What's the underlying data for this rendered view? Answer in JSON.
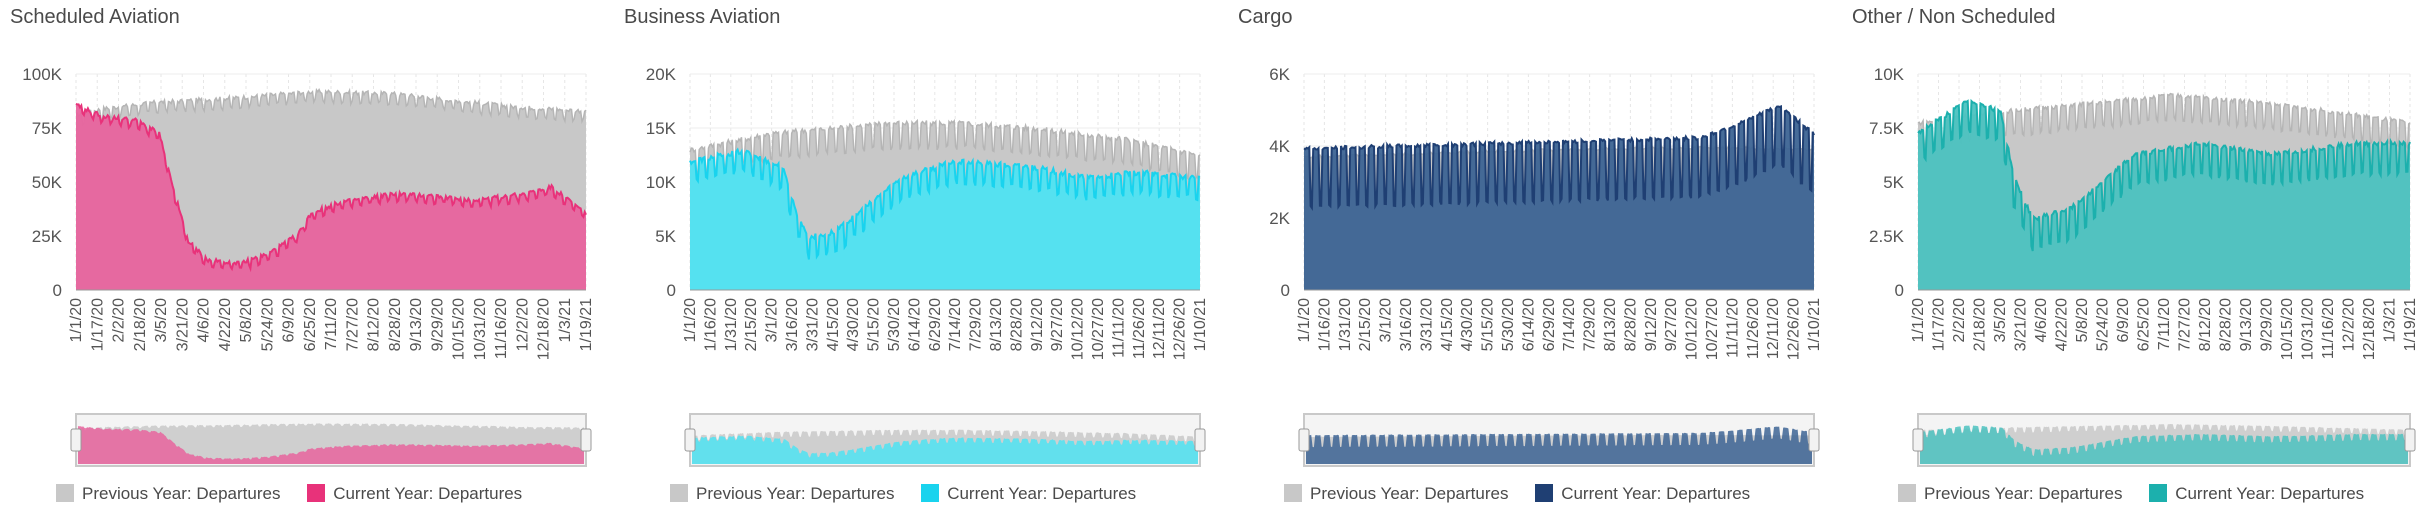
{
  "chart_data": [
    {
      "type": "area",
      "title": "Scheduled Aviation",
      "ylim": [
        0,
        100000
      ],
      "yticks": [
        "0",
        "25K",
        "50K",
        "75K",
        "100K"
      ],
      "ytick_values": [
        0,
        25000,
        50000,
        75000,
        100000
      ],
      "x_tick_labels": [
        "1/1/20",
        "1/17/20",
        "2/2/20",
        "2/18/20",
        "3/5/20",
        "3/21/20",
        "4/6/20",
        "4/22/20",
        "5/8/20",
        "5/24/20",
        "6/9/20",
        "6/25/20",
        "7/11/20",
        "7/27/20",
        "8/12/20",
        "8/28/20",
        "9/13/20",
        "9/29/20",
        "10/15/20",
        "10/31/20",
        "11/16/20",
        "12/2/20",
        "12/18/20",
        "1/3/21",
        "1/19/21"
      ],
      "grid": true,
      "legend": "bottom",
      "colors": {
        "previous": "#c8c8c8",
        "current": "#e8649e",
        "current_line": "#e8327a"
      },
      "series": [
        {
          "name": "Previous Year: Departures",
          "keyframes": [
            [
              0,
              80000
            ],
            [
              20,
              83000
            ],
            [
              60,
              86000
            ],
            [
              120,
              88000
            ],
            [
              180,
              91000
            ],
            [
              240,
              90000
            ],
            [
              300,
              86000
            ],
            [
              330,
              84000
            ],
            [
              386,
              82000
            ]
          ],
          "weekly_amp": 3500,
          "noise": 2000
        },
        {
          "name": "Current Year: Departures",
          "keyframes": [
            [
              0,
              85000
            ],
            [
              20,
              80000
            ],
            [
              45,
              78000
            ],
            [
              63,
              72000
            ],
            [
              72,
              50000
            ],
            [
              85,
              22000
            ],
            [
              100,
              13000
            ],
            [
              125,
              12000
            ],
            [
              145,
              16000
            ],
            [
              168,
              25000
            ],
            [
              178,
              35000
            ],
            [
              200,
              40000
            ],
            [
              240,
              44000
            ],
            [
              270,
              43000
            ],
            [
              300,
              41000
            ],
            [
              340,
              44000
            ],
            [
              360,
              47000
            ],
            [
              386,
              35000
            ]
          ],
          "weekly_amp": 2500,
          "noise": 1800
        }
      ]
    },
    {
      "type": "area",
      "title": "Business Aviation",
      "ylim": [
        0,
        20000
      ],
      "yticks": [
        "0",
        "5K",
        "10K",
        "15K",
        "20K"
      ],
      "ytick_values": [
        0,
        5000,
        10000,
        15000,
        20000
      ],
      "x_tick_labels": [
        "1/1/20",
        "1/16/20",
        "1/31/20",
        "2/15/20",
        "3/1/20",
        "3/16/20",
        "3/31/20",
        "4/15/20",
        "4/30/20",
        "5/15/20",
        "5/30/20",
        "6/14/20",
        "6/29/20",
        "7/14/20",
        "7/29/20",
        "8/13/20",
        "8/28/20",
        "9/12/20",
        "9/27/20",
        "10/12/20",
        "10/27/20",
        "11/11/20",
        "11/26/20",
        "12/11/20",
        "12/26/20",
        "1/10/21"
      ],
      "grid": true,
      "legend": "bottom",
      "colors": {
        "previous": "#c8c8c8",
        "current": "#4fe3f2",
        "current_line": "#19d3ee"
      },
      "series": [
        {
          "name": "Previous Year: Departures",
          "keyframes": [
            [
              0,
              12500
            ],
            [
              60,
              14000
            ],
            [
              150,
              15000
            ],
            [
              210,
              15000
            ],
            [
              260,
              14500
            ],
            [
              330,
              13500
            ],
            [
              386,
              12000
            ]
          ],
          "weekly_amp": 1800,
          "noise": 500
        },
        {
          "name": "Current Year: Departures",
          "keyframes": [
            [
              0,
              11500
            ],
            [
              40,
              12500
            ],
            [
              70,
              11000
            ],
            [
              80,
              7000
            ],
            [
              90,
              4500
            ],
            [
              110,
              5000
            ],
            [
              130,
              7000
            ],
            [
              160,
              10000
            ],
            [
              200,
              11500
            ],
            [
              260,
              11000
            ],
            [
              300,
              10000
            ],
            [
              340,
              10500
            ],
            [
              386,
              10000
            ]
          ],
          "weekly_amp": 1500,
          "noise": 500
        }
      ]
    },
    {
      "type": "area",
      "title": "Cargo",
      "ylim": [
        0,
        6000
      ],
      "yticks": [
        "0",
        "2K",
        "4K",
        "6K"
      ],
      "ytick_values": [
        0,
        2000,
        4000,
        6000
      ],
      "x_tick_labels": [
        "1/1/20",
        "1/16/20",
        "1/31/20",
        "2/15/20",
        "3/1/20",
        "3/16/20",
        "3/31/20",
        "4/15/20",
        "4/30/20",
        "5/15/20",
        "5/30/20",
        "6/14/20",
        "6/29/20",
        "7/14/20",
        "7/29/20",
        "8/13/20",
        "8/28/20",
        "9/12/20",
        "9/27/20",
        "10/12/20",
        "10/27/20",
        "11/11/20",
        "11/26/20",
        "12/11/20",
        "12/26/20",
        "1/10/21"
      ],
      "grid": true,
      "legend": "bottom",
      "colors": {
        "previous": "#c8c8c8",
        "current": "#3d6494",
        "current_line": "#1f3f73"
      },
      "series": [
        {
          "name": "Previous Year: Departures",
          "keyframes": [
            [
              0,
              3700
            ],
            [
              100,
              3800
            ],
            [
              200,
              3900
            ],
            [
              300,
              3950
            ],
            [
              386,
              3900
            ]
          ],
          "weekly_amp": 0,
          "noise": 80
        },
        {
          "name": "Current Year: Departures",
          "keyframes": [
            [
              0,
              3600
            ],
            [
              100,
              3700
            ],
            [
              200,
              3800
            ],
            [
              300,
              3900
            ],
            [
              330,
              4300
            ],
            [
              360,
              4800
            ],
            [
              386,
              4000
            ]
          ],
          "weekly_amp": 1300,
          "noise": 100
        }
      ]
    },
    {
      "type": "area",
      "title": "Other / Non Scheduled",
      "ylim": [
        0,
        10000
      ],
      "yticks": [
        "0",
        "2.5K",
        "5K",
        "7.5K",
        "10K"
      ],
      "ytick_values": [
        0,
        2500,
        5000,
        7500,
        10000
      ],
      "x_tick_labels": [
        "1/1/20",
        "1/17/20",
        "2/2/20",
        "2/18/20",
        "3/5/20",
        "3/21/20",
        "4/6/20",
        "4/22/20",
        "5/8/20",
        "5/24/20",
        "6/9/20",
        "6/25/20",
        "7/11/20",
        "7/27/20",
        "8/12/20",
        "8/28/20",
        "9/13/20",
        "9/29/20",
        "10/15/20",
        "10/31/20",
        "11/16/20",
        "12/2/20",
        "12/18/20",
        "1/3/21",
        "1/19/21"
      ],
      "grid": true,
      "legend": "bottom",
      "colors": {
        "previous": "#c8c8c8",
        "current": "#4cc2c0",
        "current_line": "#1cb0ad"
      },
      "series": [
        {
          "name": "Previous Year: Departures",
          "keyframes": [
            [
              0,
              7500
            ],
            [
              60,
              8000
            ],
            [
              150,
              8500
            ],
            [
              200,
              8800
            ],
            [
              260,
              8500
            ],
            [
              330,
              8000
            ],
            [
              386,
              7500
            ]
          ],
          "weekly_amp": 900,
          "noise": 200
        },
        {
          "name": "Current Year: Departures",
          "keyframes": [
            [
              0,
              7000
            ],
            [
              40,
              8500
            ],
            [
              65,
              8000
            ],
            [
              75,
              5000
            ],
            [
              90,
              3000
            ],
            [
              120,
              3500
            ],
            [
              170,
              6000
            ],
            [
              220,
              6500
            ],
            [
              280,
              6000
            ],
            [
              340,
              6500
            ],
            [
              386,
              6500
            ]
          ],
          "weekly_amp": 1100,
          "noise": 200
        }
      ]
    }
  ]
}
